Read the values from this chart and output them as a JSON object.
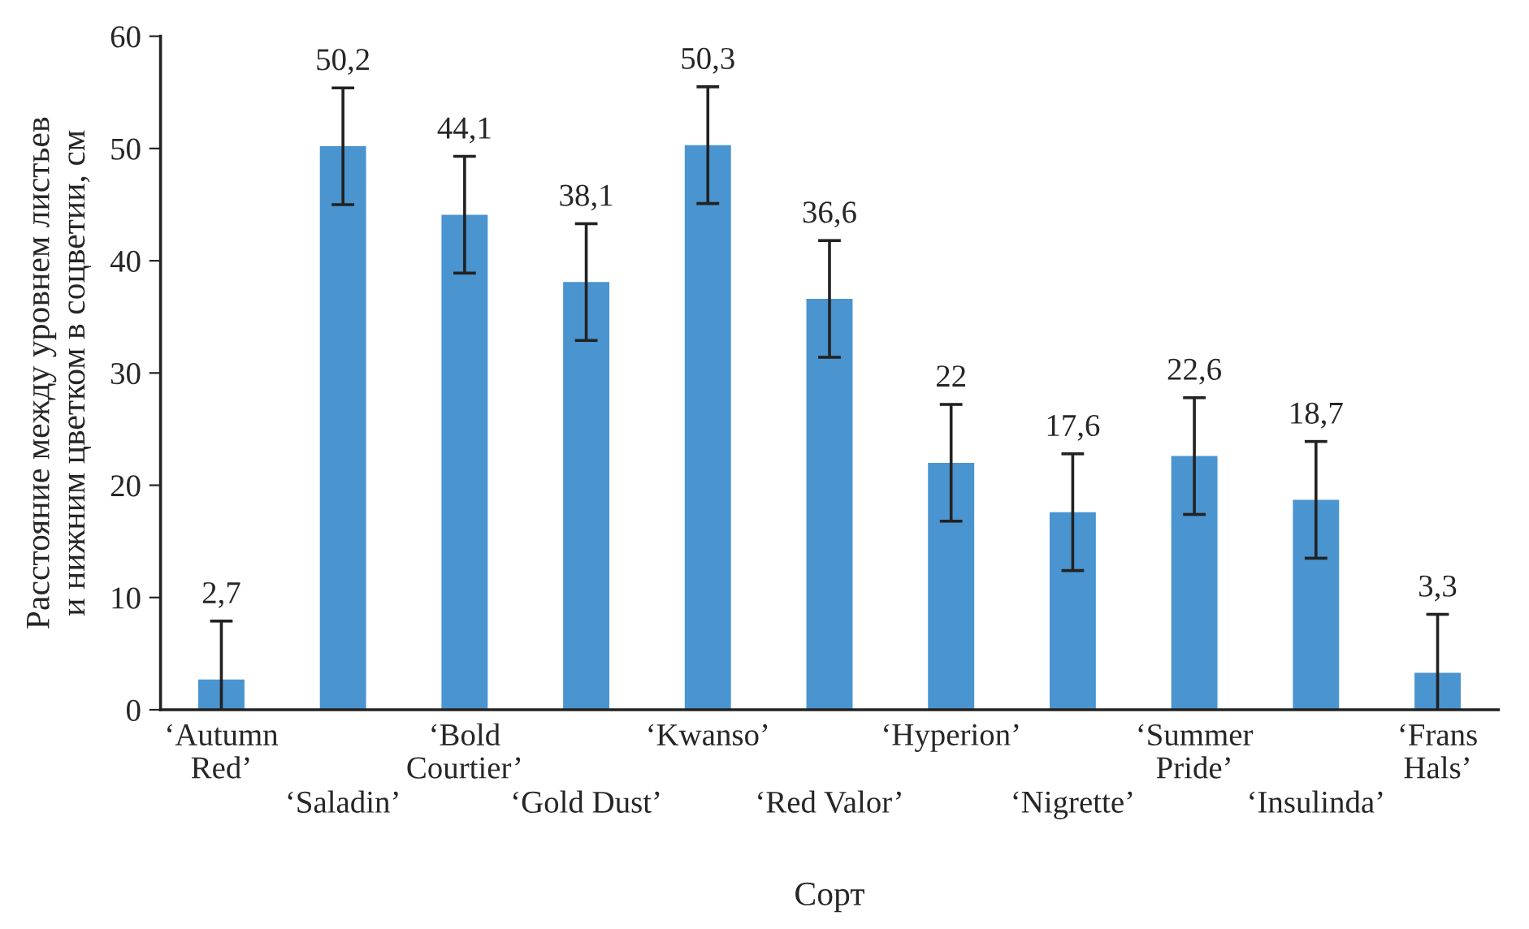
{
  "chart_data": {
    "type": "bar",
    "xlabel": "Сорт",
    "ylabel": "Расстояние между уровнем листьев\nи нижним цветком в соцветии, см",
    "categories": [
      "‘Autumn\nRed’",
      "‘Saladin’",
      "‘Bold\nCourtier’",
      "‘Gold Dust’",
      "‘Kwanso’",
      "‘Red Valor’",
      "‘Hyperion’",
      "‘Nigrette’",
      "‘Summer\nPride’",
      "‘Insulinda’",
      "‘Frans\nHals’"
    ],
    "values": [
      2.7,
      50.2,
      44.1,
      38.1,
      50.3,
      36.6,
      22,
      17.6,
      22.6,
      18.7,
      3.3
    ],
    "value_labels": [
      "2,7",
      "50,2",
      "44,1",
      "38,1",
      "50,3",
      "36,6",
      "22",
      "17,6",
      "22,6",
      "18,7",
      "3,3"
    ],
    "errors": [
      5.2,
      5.2,
      5.2,
      5.2,
      5.2,
      5.2,
      5.2,
      5.2,
      5.2,
      5.2,
      5.2
    ],
    "color": "#4a94d0",
    "ylim": [
      0,
      60
    ],
    "yticks": [
      0,
      10,
      20,
      30,
      40,
      50,
      60
    ],
    "grid": false
  }
}
